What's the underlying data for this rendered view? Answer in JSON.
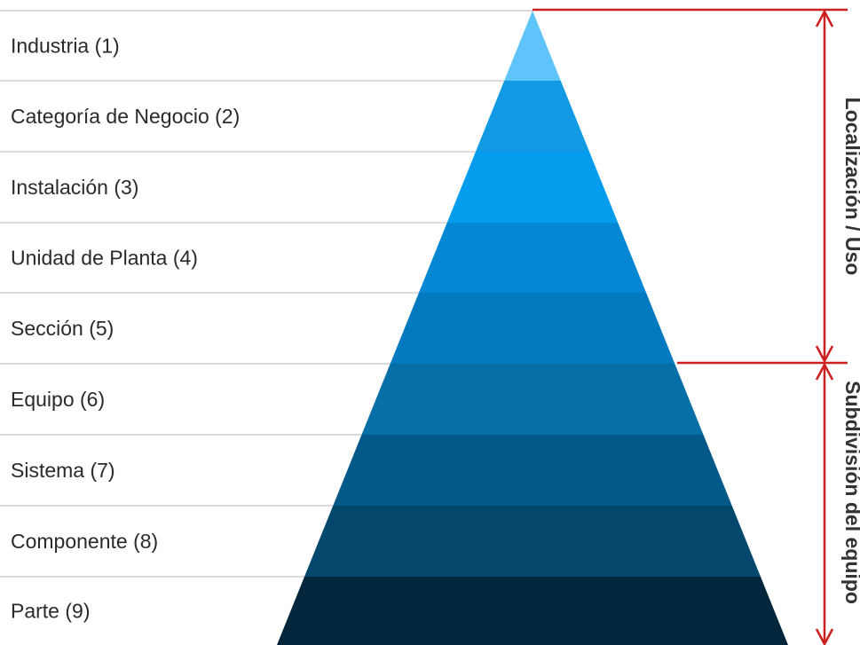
{
  "levels": [
    {
      "label": "Industria (1)",
      "color": "#5fc4fb"
    },
    {
      "label": "Categoría de Negocio (2)",
      "color": "#1199e3"
    },
    {
      "label": "Instalación (3)",
      "color": "#049ded"
    },
    {
      "label": "Unidad de Planta (4)",
      "color": "#0588d4"
    },
    {
      "label": "Sección (5)",
      "color": "#017ac0"
    },
    {
      "label": "Equipo (6)",
      "color": "#066fa7"
    },
    {
      "label": "Sistema (7)",
      "color": "#035a8a"
    },
    {
      "label": "Componente (8)",
      "color": "#03476d"
    },
    {
      "label": "Parte (9)",
      "color": "#02263b"
    }
  ],
  "sections": [
    {
      "label": "Localización / Uso",
      "from_level": 1,
      "to_level": 5
    },
    {
      "label": "Subdivisión del equipo",
      "from_level": 6,
      "to_level": 9
    }
  ],
  "colors": {
    "divider": "#c8c8c8",
    "bracket": "#cc1f1f",
    "text": "#2a2a2a"
  }
}
